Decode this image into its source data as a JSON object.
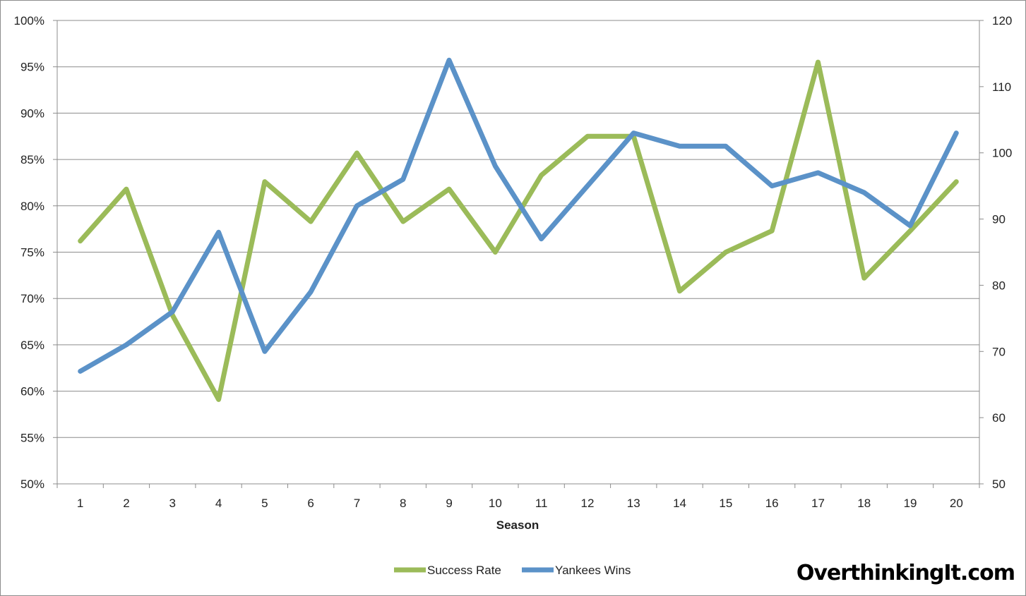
{
  "chart_data": {
    "type": "line",
    "title": "",
    "xlabel": "Season",
    "ylabel_left": "",
    "ylabel_right": "",
    "categories": [
      "1",
      "2",
      "3",
      "4",
      "5",
      "6",
      "7",
      "8",
      "9",
      "10",
      "11",
      "12",
      "13",
      "14",
      "15",
      "16",
      "17",
      "18",
      "19",
      "20"
    ],
    "y_left": {
      "lim": [
        0.5,
        1.0
      ],
      "ticks": [
        "50%",
        "55%",
        "60%",
        "65%",
        "70%",
        "75%",
        "80%",
        "85%",
        "90%",
        "95%",
        "100%"
      ]
    },
    "y_right": {
      "lim": [
        50,
        120
      ],
      "ticks": [
        "50",
        "60",
        "70",
        "80",
        "90",
        "100",
        "110",
        "120"
      ]
    },
    "grid": "horizontal",
    "legend_position": "bottom",
    "series": [
      {
        "name": "Success Rate",
        "axis": "left",
        "color": "#9bbb59",
        "values": [
          0.762,
          0.818,
          0.682,
          0.591,
          0.826,
          0.783,
          0.857,
          0.783,
          0.818,
          0.75,
          0.833,
          0.875,
          0.875,
          0.708,
          0.75,
          0.773,
          0.955,
          0.722,
          0.773,
          0.826
        ]
      },
      {
        "name": "Yankees Wins",
        "axis": "right",
        "color": "#5b92c8",
        "values": [
          67,
          71,
          76,
          88,
          70,
          79,
          92,
          96,
          114,
          98,
          87,
          95,
          103,
          101,
          101,
          95,
          97,
          94,
          89,
          103
        ]
      }
    ]
  },
  "watermark": "OverthinkingIt.com"
}
